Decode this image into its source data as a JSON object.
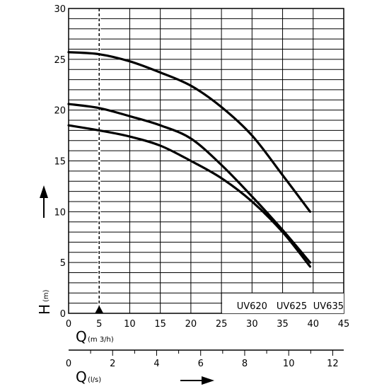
{
  "chart_data": {
    "type": "line",
    "xlabel": {
      "symbol": "Q",
      "unit": "(m 3/h)"
    },
    "x2label": {
      "symbol": "Q",
      "unit": "(l/s)"
    },
    "ylabel": {
      "symbol": "H",
      "unit": "(m)"
    },
    "xlim": [
      0,
      45
    ],
    "x2lim": [
      0,
      12.5
    ],
    "ylim": [
      0,
      30
    ],
    "x_ticks": [
      0,
      5,
      10,
      15,
      20,
      25,
      30,
      35,
      40,
      45
    ],
    "x2_ticks": [
      0,
      2,
      4,
      6,
      8,
      10,
      12
    ],
    "y_ticks": [
      0,
      5,
      10,
      15,
      20,
      25,
      30
    ],
    "grid": true,
    "grid_x_step": 5,
    "grid_y_step": 1,
    "reference_line": {
      "x": 5,
      "style": "dashed",
      "marker": "triangle"
    },
    "legend_labels": [
      "UV620",
      "UV625",
      "UV635"
    ],
    "series": [
      {
        "x": [
          0,
          5,
          10,
          15,
          20,
          25,
          30,
          35,
          39.5
        ],
        "values": [
          18.5,
          18.0,
          17.4,
          16.5,
          15.0,
          13.3,
          11.0,
          8.0,
          4.6
        ]
      },
      {
        "x": [
          0,
          5,
          10,
          15,
          20,
          25,
          30,
          35,
          39.5
        ],
        "values": [
          20.6,
          20.2,
          19.4,
          18.5,
          17.2,
          14.6,
          11.5,
          8.2,
          5.0
        ]
      },
      {
        "x": [
          0,
          5,
          10,
          15,
          20,
          25,
          30,
          35,
          39.5
        ],
        "values": [
          25.7,
          25.5,
          24.8,
          23.7,
          22.4,
          20.3,
          17.5,
          13.6,
          10.0
        ]
      }
    ]
  }
}
